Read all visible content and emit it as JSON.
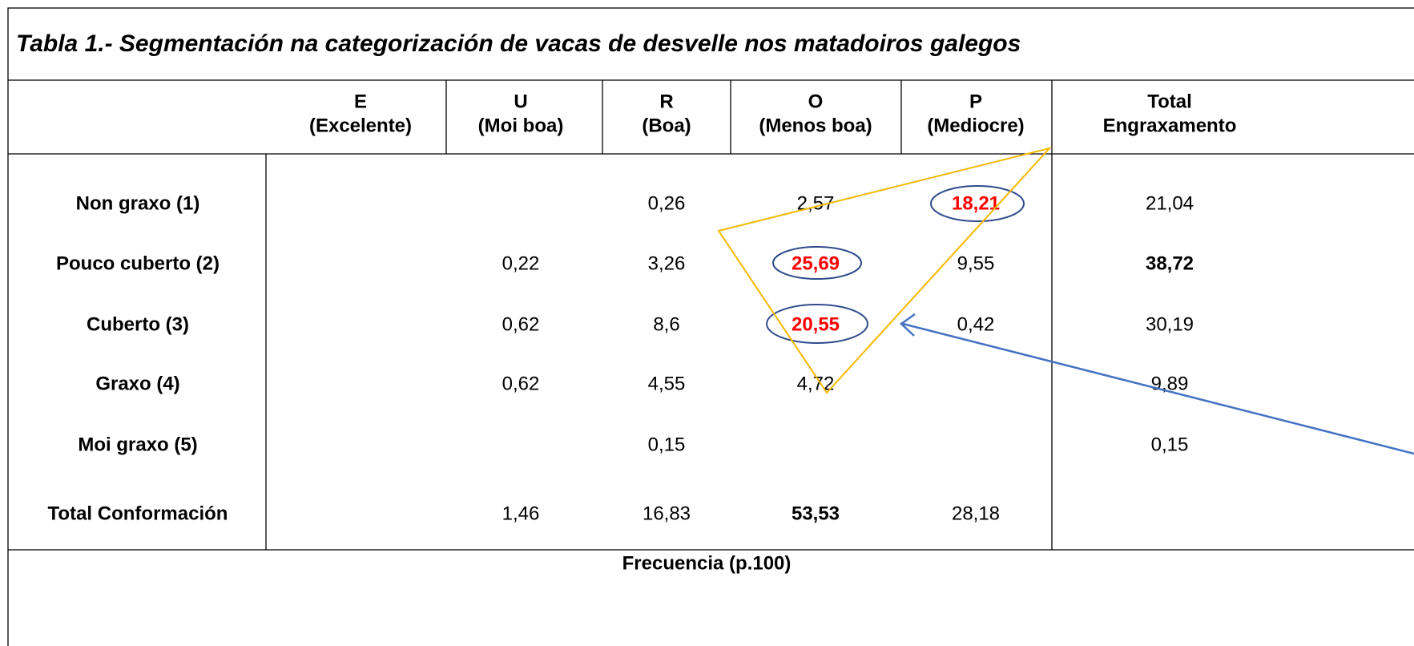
{
  "title": "Tabla 1.- Segmentación na categorización de vacas de desvelle nos matadoiros  galegos",
  "columns": [
    {
      "letter": "E",
      "name": "(Excelente)"
    },
    {
      "letter": "U",
      "name": "(Moi boa)"
    },
    {
      "letter": "R",
      "name": "(Boa)"
    },
    {
      "letter": "O",
      "name": "(Menos boa)"
    },
    {
      "letter": "P",
      "name": "(Mediocre)"
    },
    {
      "letter": "Total",
      "name": "Engraxamento"
    }
  ],
  "rows": [
    {
      "label": "Non graxo (1)",
      "cells": [
        null,
        null,
        "0,26",
        "2,57",
        "18,21",
        "21,04"
      ]
    },
    {
      "label": "Pouco cuberto (2)",
      "cells": [
        null,
        "0,22",
        "3,26",
        "25,69",
        "9,55",
        "38,72"
      ]
    },
    {
      "label": "Cuberto (3)",
      "cells": [
        null,
        "0,62",
        "8,6",
        "20,55",
        "0,42",
        "30,19"
      ]
    },
    {
      "label": "Graxo (4)",
      "cells": [
        null,
        "0,62",
        "4,55",
        "4,72",
        null,
        "9,89"
      ]
    },
    {
      "label": "Moi graxo (5)",
      "cells": [
        null,
        null,
        "0,15",
        null,
        null,
        "0,15"
      ]
    },
    {
      "label": "Total Conformación",
      "cells": [
        null,
        "1,46",
        "16,83",
        "53,53",
        "28,18",
        null
      ]
    }
  ],
  "footer": "Frecuencia (p.100)"
}
